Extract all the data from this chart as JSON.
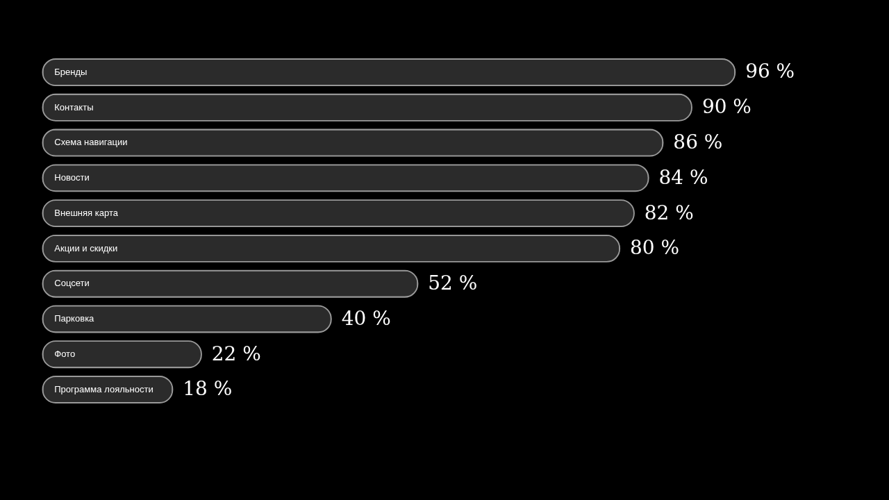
{
  "chart_data": {
    "type": "bar",
    "orientation": "horizontal",
    "categories": [
      "Бренды",
      "Контакты",
      "Схема навигации",
      "Новости",
      "Внешняя карта",
      "Акции и скидки",
      "Соцсети",
      "Парковка",
      "Фото",
      "Программа лояльности"
    ],
    "values": [
      96,
      90,
      86,
      84,
      82,
      80,
      52,
      40,
      22,
      18
    ],
    "value_labels": [
      "96 %",
      "90 %",
      "86 %",
      "84 %",
      "82 %",
      "80 %",
      "52 %",
      "40 %",
      "22 %",
      "18 %"
    ],
    "color": "#2b2b2b",
    "tick_labels": false
  }
}
